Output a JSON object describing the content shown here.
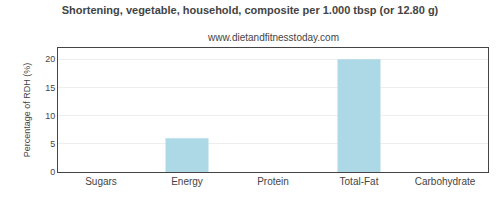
{
  "chart_data": {
    "type": "bar",
    "title": "Shortening, vegetable, household, composite per 1.000 tbsp (or 12.80 g)",
    "subtitle": "www.dietandfitnesstoday.com",
    "ylabel": "Percentage of RDH (%)",
    "categories": [
      "Sugars",
      "Energy",
      "Protein",
      "Total-Fat",
      "Carbohydrate"
    ],
    "values": [
      0,
      6,
      0,
      20,
      0
    ],
    "color": "#add8e6",
    "ylim": [
      0,
      22
    ],
    "yticks": [
      0,
      5,
      10,
      15,
      20
    ],
    "grid": true
  }
}
